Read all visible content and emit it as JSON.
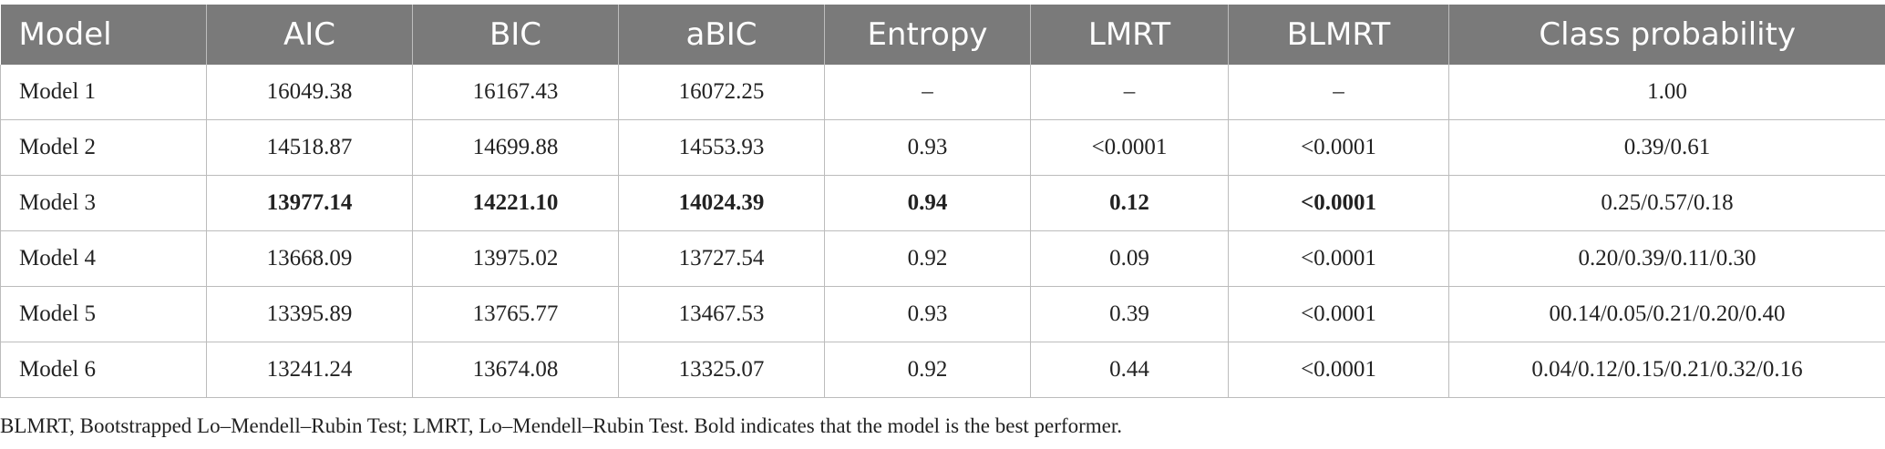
{
  "table": {
    "headers": [
      "Model",
      "AIC",
      "BIC",
      "aBIC",
      "Entropy",
      "LMRT",
      "BLMRT",
      "Class probability"
    ],
    "rows": [
      {
        "best": false,
        "cells": [
          "Model 1",
          "16049.38",
          "16167.43",
          "16072.25",
          "–",
          "–",
          "–",
          "1.00"
        ]
      },
      {
        "best": false,
        "cells": [
          "Model 2",
          "14518.87",
          "14699.88",
          "14553.93",
          "0.93",
          "<0.0001",
          "<0.0001",
          "0.39/0.61"
        ]
      },
      {
        "best": true,
        "cells": [
          "Model 3",
          "13977.14",
          "14221.10",
          "14024.39",
          "0.94",
          "0.12",
          "<0.0001",
          "0.25/0.57/0.18"
        ]
      },
      {
        "best": false,
        "cells": [
          "Model 4",
          "13668.09",
          "13975.02",
          "13727.54",
          "0.92",
          "0.09",
          "<0.0001",
          "0.20/0.39/0.11/0.30"
        ]
      },
      {
        "best": false,
        "cells": [
          "Model 5",
          "13395.89",
          "13765.77",
          "13467.53",
          "0.93",
          "0.39",
          "<0.0001",
          "00.14/0.05/0.21/0.20/0.40"
        ]
      },
      {
        "best": false,
        "cells": [
          "Model 6",
          "13241.24",
          "13674.08",
          "13325.07",
          "0.92",
          "0.44",
          "<0.0001",
          "0.04/0.12/0.15/0.21/0.32/0.16"
        ]
      }
    ]
  },
  "footnote": "BLMRT, Bootstrapped Lo–Mendell–Rubin Test; LMRT, Lo–Mendell–Rubin Test. Bold indicates that the model is the best performer."
}
